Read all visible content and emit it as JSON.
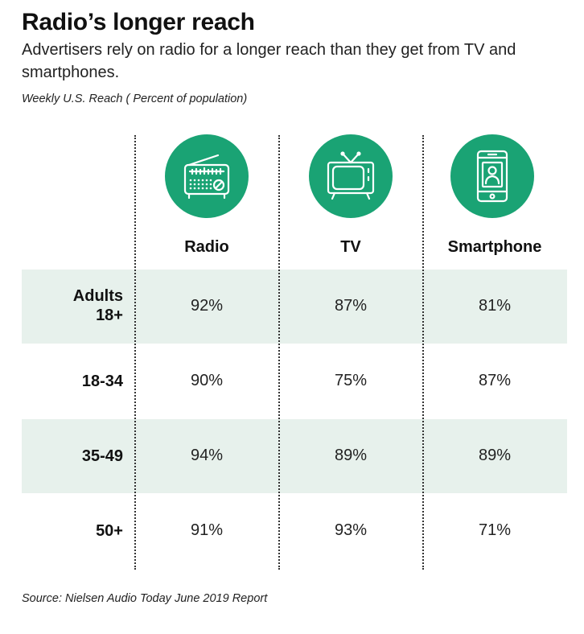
{
  "title": "Radio’s longer reach",
  "subtitle": "Advertisers rely on radio for a longer reach than they get from TV and smartphones.",
  "measure_label": "Weekly U.S. Reach ( Percent of population)",
  "source": "Source: Nielsen Audio Today June 2019 Report",
  "colors": {
    "accent": "#1aa374",
    "band": "#e7f1ec"
  },
  "icons": [
    "radio-icon",
    "tv-icon",
    "smartphone-icon"
  ],
  "chart_data": {
    "type": "table",
    "columns": [
      "Radio",
      "TV",
      "Smartphone"
    ],
    "rows": [
      {
        "label_line1": "Adults",
        "label_line2": "18+",
        "cells": [
          "92%",
          "87%",
          "81%"
        ]
      },
      {
        "label": "18-34",
        "cells": [
          "90%",
          "75%",
          "87%"
        ]
      },
      {
        "label": "35-49",
        "cells": [
          "94%",
          "89%",
          "89%"
        ]
      },
      {
        "label": "50+",
        "cells": [
          "91%",
          "93%",
          "71%"
        ]
      }
    ]
  }
}
